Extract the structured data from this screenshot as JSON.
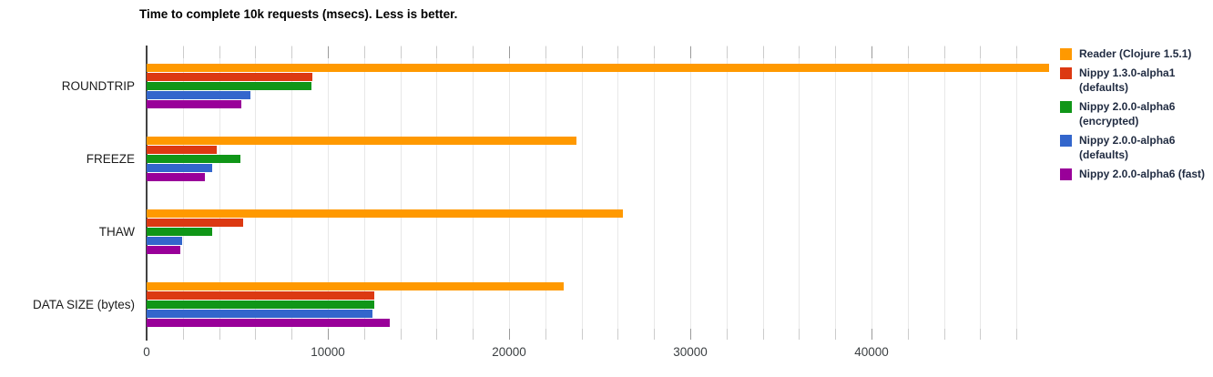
{
  "chart_data": {
    "type": "bar",
    "orientation": "horizontal",
    "title": "Time to complete 10k requests (msecs). Less is better.",
    "categories": [
      "ROUNDTRIP",
      "FREEZE",
      "THAW",
      "DATA SIZE (bytes)"
    ],
    "series": [
      {
        "name": "Reader (Clojure 1.5.1)",
        "color": "#FF9900",
        "values": [
          49800,
          23700,
          26300,
          23000
        ]
      },
      {
        "name": "Nippy 1.3.0-alpha1 (defaults)",
        "color": "#DC3912",
        "values": [
          9150,
          3870,
          5350,
          12540
        ]
      },
      {
        "name": "Nippy 2.0.0-alpha6 (encrypted)",
        "color": "#109618",
        "values": [
          9100,
          5200,
          3640,
          12540
        ]
      },
      {
        "name": "Nippy 2.0.0-alpha6 (defaults)",
        "color": "#3366CC",
        "values": [
          5750,
          3600,
          1950,
          12460
        ]
      },
      {
        "name": "Nippy 2.0.0-alpha6 (fast)",
        "color": "#990099",
        "values": [
          5250,
          3230,
          1880,
          13420
        ]
      }
    ],
    "xlabel": "",
    "ylabel": "",
    "xlim": [
      0,
      50000
    ],
    "x_major_step": 10000,
    "x_minor_step": 2000,
    "x_gridline_max": 48000,
    "x_tick_labels": [
      "0",
      "10000",
      "20000",
      "30000",
      "40000"
    ],
    "grid": true,
    "legend_position": "right"
  }
}
